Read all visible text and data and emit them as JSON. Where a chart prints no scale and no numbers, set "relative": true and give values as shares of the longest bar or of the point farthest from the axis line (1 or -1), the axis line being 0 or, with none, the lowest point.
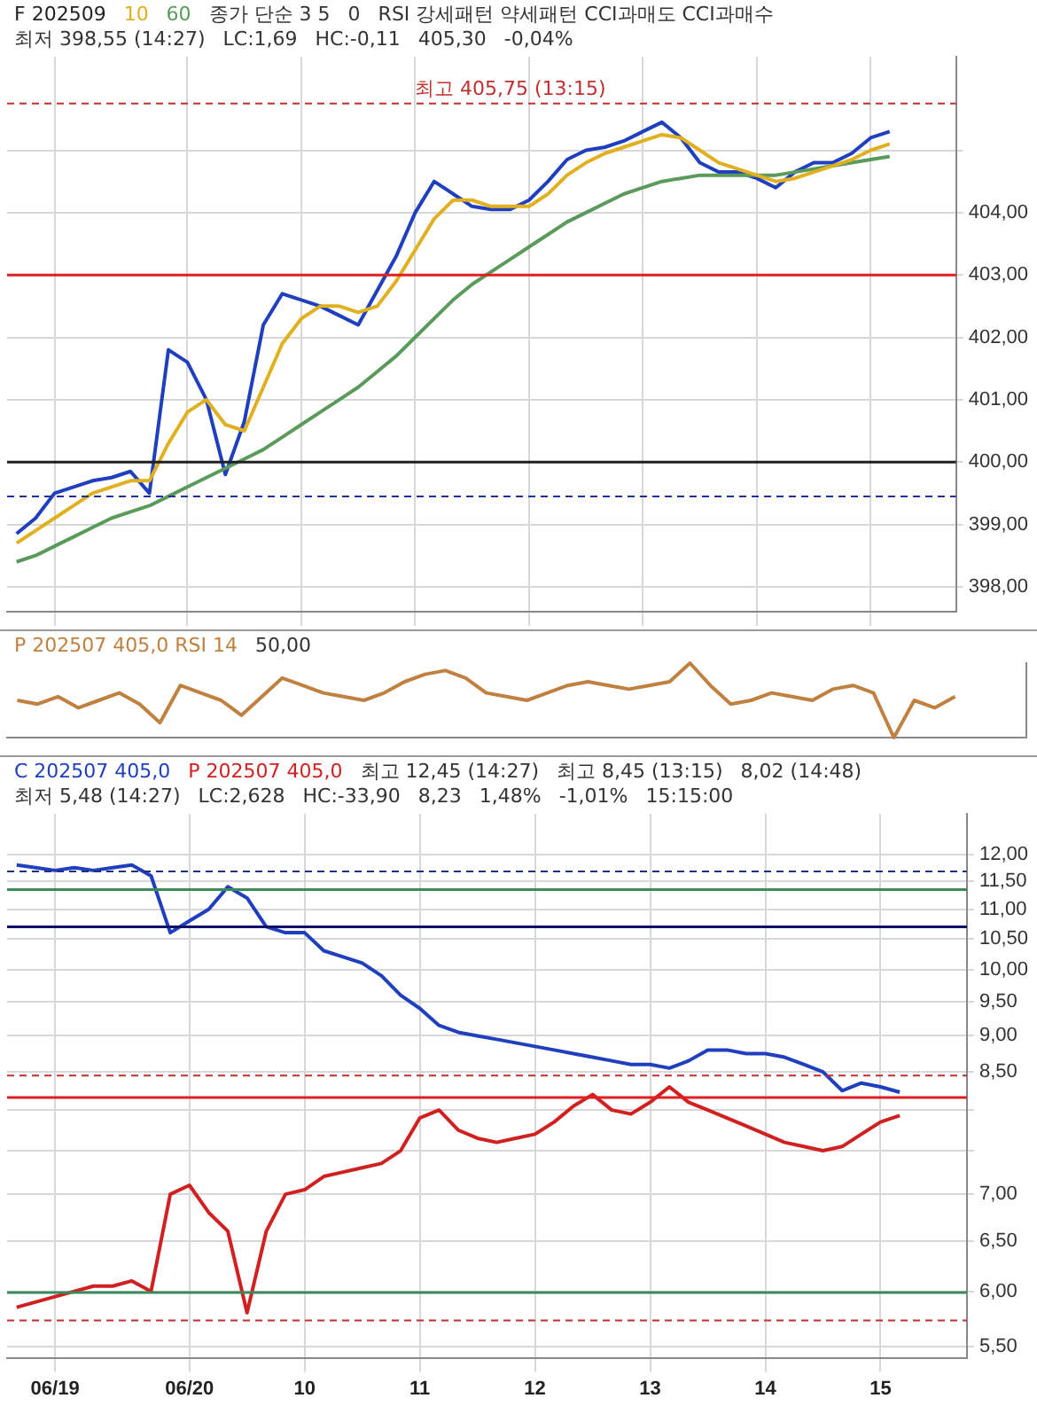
{
  "chart_data": [
    {
      "type": "line",
      "title": "F 202509",
      "categories": [
        null,
        null,
        null,
        null,
        null,
        null,
        null,
        null,
        null,
        null,
        null,
        null,
        null,
        null,
        null,
        null,
        null,
        null,
        null,
        null,
        null,
        null,
        null,
        null,
        null,
        null,
        null,
        null,
        null,
        null,
        null,
        null,
        null,
        null,
        null,
        null,
        null,
        null,
        null,
        null,
        null,
        null,
        null,
        null,
        null,
        null,
        null,
        null,
        null,
        null
      ],
      "series": [
        {
          "name": "10",
          "color": "#e0b020",
          "values": [
            398.7,
            398.9,
            399.1,
            399.3,
            399.5,
            399.6,
            399.7,
            399.7,
            400.3,
            400.8,
            401.0,
            400.6,
            400.5,
            401.2,
            401.9,
            402.3,
            402.5,
            402.5,
            402.4,
            402.5,
            402.9,
            403.4,
            403.9,
            404.2,
            404.2,
            404.1,
            404.1,
            404.1,
            404.3,
            404.6,
            404.8,
            404.95,
            405.05,
            405.15,
            405.25,
            405.2,
            405.0,
            404.8,
            404.7,
            404.6,
            404.5,
            404.55,
            404.65,
            404.75,
            404.85,
            405.0,
            405.1,
            null,
            null,
            null
          ]
        },
        {
          "name": "60",
          "color": "#5a9a5a",
          "values": [
            398.4,
            398.5,
            398.65,
            398.8,
            398.95,
            399.1,
            399.2,
            399.3,
            399.45,
            399.6,
            399.75,
            399.9,
            400.05,
            400.2,
            400.4,
            400.6,
            400.8,
            401.0,
            401.2,
            401.45,
            401.7,
            402.0,
            402.3,
            402.6,
            402.85,
            403.05,
            403.25,
            403.45,
            403.65,
            403.85,
            404.0,
            404.15,
            404.3,
            404.4,
            404.5,
            404.55,
            404.6,
            404.6,
            404.6,
            404.6,
            404.6,
            404.65,
            404.7,
            404.75,
            404.8,
            404.85,
            404.9,
            null,
            null,
            null
          ]
        },
        {
          "color": "#1f3fbf",
          "values": [
            398.85,
            399.1,
            399.5,
            399.6,
            399.7,
            399.75,
            399.85,
            399.5,
            401.8,
            401.6,
            401.0,
            399.8,
            400.65,
            402.2,
            402.7,
            402.6,
            402.5,
            402.35,
            402.2,
            402.75,
            403.3,
            404.0,
            404.5,
            404.3,
            404.1,
            404.05,
            404.05,
            404.2,
            404.5,
            404.85,
            405.0,
            405.05,
            405.15,
            405.3,
            405.45,
            405.2,
            404.8,
            404.65,
            404.65,
            404.55,
            404.4,
            404.65,
            404.8,
            404.8,
            404.95,
            405.2,
            405.3,
            null,
            null,
            null
          ]
        }
      ],
      "ylim": [
        397.6,
        406.5
      ],
      "yticks": [
        {
          "value": 398,
          "label": "398,00"
        },
        {
          "value": 399,
          "label": "399,00"
        },
        {
          "value": 400,
          "label": "400,00"
        },
        {
          "value": 401,
          "label": "401,00"
        },
        {
          "value": 402,
          "label": "402,00"
        },
        {
          "value": 403,
          "label": "403,00"
        },
        {
          "value": 404,
          "label": "404,00"
        },
        {
          "value": 405,
          "label": null
        }
      ],
      "ref_lines": [
        {
          "axis": "y",
          "value": 405.75,
          "label": "최고 405,75 (13:15)",
          "color": "#c03030",
          "line_style": "dashed"
        },
        {
          "axis": "y",
          "value": 403,
          "color": "#e02020",
          "line_style": "solid"
        },
        {
          "axis": "y",
          "value": 400,
          "color": "#202020",
          "line_style": "solid"
        },
        {
          "axis": "y",
          "value": 399.45,
          "color": "#2030a0",
          "line_style": "dashed"
        }
      ],
      "annotations": [
        "종가 단순 3 5",
        "0",
        "RSI 강세패턴 약세패턴 CCI과매도 CCI과매수",
        "최저 398,55 (14:27)",
        "LC:1,69",
        "HC:-0,11",
        "405,30",
        "-0,04%"
      ],
      "grid": true,
      "tick_labels": "y",
      "marker": "none",
      "line_style": "solid"
    },
    {
      "type": "line",
      "categories": [
        null,
        null,
        null,
        null,
        null,
        null,
        null,
        null,
        null,
        null,
        null,
        null,
        null,
        null,
        null,
        null,
        null,
        null,
        null,
        null,
        null,
        null,
        null,
        null,
        null,
        null,
        null,
        null,
        null,
        null,
        null,
        null,
        null,
        null,
        null,
        null,
        null,
        null,
        null,
        null,
        null,
        null,
        null,
        null,
        null,
        null,
        null,
        null,
        null,
        null
      ],
      "relative": true,
      "series": [
        {
          "name": "P 202507 405,0 RSI 14",
          "color": "#c08040",
          "values": [
            0.5,
            0.45,
            0.55,
            0.4,
            0.5,
            0.6,
            0.45,
            0.2,
            0.7,
            0.6,
            0.5,
            0.3,
            0.55,
            0.8,
            0.7,
            0.6,
            0.55,
            0.5,
            0.6,
            0.75,
            0.85,
            0.9,
            0.8,
            0.6,
            0.55,
            0.5,
            0.6,
            0.7,
            0.75,
            0.7,
            0.65,
            0.7,
            0.75,
            1,
            0.7,
            0.45,
            0.5,
            0.6,
            0.55,
            0.5,
            0.65,
            0.7,
            0.6,
            0,
            0.5,
            0.4,
            0.55,
            null,
            null,
            null
          ]
        }
      ],
      "annotations": [
        "50,00"
      ],
      "tick_labels": false,
      "marker": "none",
      "line_style": "solid"
    },
    {
      "type": "line",
      "categories": [
        null,
        null,
        "06/19",
        null,
        null,
        null,
        null,
        null,
        null,
        "06/20",
        null,
        null,
        null,
        null,
        null,
        "10",
        null,
        null,
        null,
        null,
        null,
        "11",
        null,
        null,
        null,
        null,
        null,
        "12",
        null,
        null,
        null,
        null,
        null,
        "13",
        null,
        null,
        null,
        null,
        null,
        "14",
        null,
        null,
        null,
        null,
        null,
        "15",
        null,
        null,
        null,
        null
      ],
      "series": [
        {
          "name": "C 202507 405,0",
          "color": "#1f3fbf",
          "values": [
            11.8,
            11.75,
            11.7,
            11.75,
            11.7,
            11.75,
            11.8,
            11.6,
            10.6,
            10.8,
            11.0,
            11.4,
            11.2,
            10.7,
            10.6,
            10.6,
            10.3,
            10.2,
            10.1,
            9.9,
            9.6,
            9.4,
            9.15,
            9.05,
            9.0,
            8.95,
            8.9,
            8.85,
            8.8,
            8.75,
            8.7,
            8.65,
            8.6,
            8.6,
            8.55,
            8.65,
            8.8,
            8.8,
            8.75,
            8.75,
            8.7,
            8.6,
            8.5,
            8.25,
            8.35,
            8.3,
            8.23,
            null,
            null,
            null
          ]
        },
        {
          "name": "P 202507 405,0",
          "color": "#d02020",
          "values": [
            5.85,
            5.9,
            5.95,
            6.0,
            6.05,
            6.05,
            6.1,
            6.0,
            7.0,
            7.1,
            6.8,
            6.6,
            5.8,
            6.6,
            7.0,
            7.05,
            7.2,
            7.25,
            7.3,
            7.35,
            7.5,
            7.9,
            8.0,
            7.75,
            7.65,
            7.6,
            7.65,
            7.7,
            7.85,
            8.05,
            8.2,
            8.0,
            7.95,
            8.1,
            8.3,
            8.1,
            8.0,
            7.9,
            7.8,
            7.7,
            7.6,
            7.55,
            7.5,
            7.55,
            7.7,
            7.85,
            7.93,
            null,
            null,
            null
          ]
        }
      ],
      "log": "y",
      "ylim": [
        5.4,
        12.8
      ],
      "yticks": [
        {
          "value": 5.5,
          "label": "5,50"
        },
        {
          "value": 6,
          "label": "6,00"
        },
        {
          "value": 6.5,
          "label": "6,50"
        },
        {
          "value": 7,
          "label": "7,00"
        },
        {
          "value": 7.5,
          "label": null
        },
        {
          "value": 8,
          "label": null
        },
        {
          "value": 8.5,
          "label": "8,50"
        },
        {
          "value": 9,
          "label": "9,00"
        },
        {
          "value": 9.5,
          "label": "9,50"
        },
        {
          "value": 10,
          "label": "10,00"
        },
        {
          "value": 10.5,
          "label": "10,50"
        },
        {
          "value": 11,
          "label": "11,00"
        },
        {
          "value": 11.5,
          "label": "11,50"
        },
        {
          "value": 12,
          "label": "12,00"
        }
      ],
      "ref_lines": [
        {
          "axis": "y",
          "value": 11.68,
          "color": "#203080",
          "line_style": "dashed"
        },
        {
          "axis": "y",
          "value": 11.35,
          "color": "#3a8a5a",
          "line_style": "solid"
        },
        {
          "axis": "y",
          "value": 10.7,
          "color": "#10106a",
          "line_style": "solid"
        },
        {
          "axis": "y",
          "value": 8.45,
          "color": "#c03030",
          "line_style": "dashed"
        },
        {
          "axis": "y",
          "value": 8.16,
          "color": "#e02020",
          "line_style": "solid"
        },
        {
          "axis": "y",
          "value": 5.99,
          "color": "#3a8a5a",
          "line_style": "solid"
        },
        {
          "axis": "y",
          "value": 5.73,
          "color": "#c03030",
          "line_style": "dashed"
        }
      ],
      "annotations": [
        "최고 12,45 (14:27)",
        "최고 8,45 (13:15)",
        "8,02 (14:48)",
        "최저 5,48 (14:27)",
        "LC:2,628",
        "HC:-33,90",
        "8,23",
        "1,48%",
        "-1,01%",
        "15:15:00"
      ],
      "grid": true,
      "marker": "none",
      "line_style": "solid"
    }
  ]
}
